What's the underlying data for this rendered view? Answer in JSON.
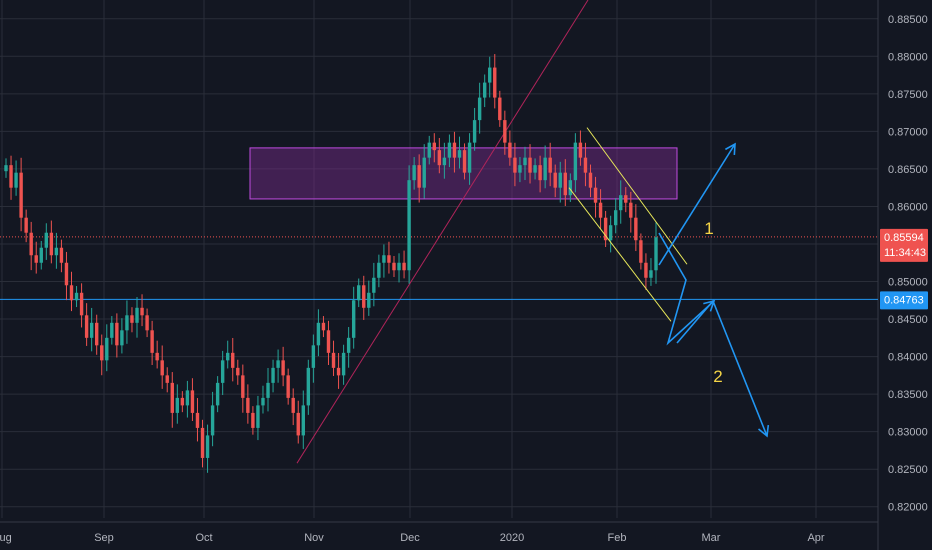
{
  "chart_data": {
    "type": "candlestick",
    "colors": {
      "background": "#131722",
      "grid": "#2a2e39",
      "axis_text": "#b2b5be",
      "up": "#26a69a",
      "down": "#ef5350",
      "zone_fill": "#7b2c8f",
      "zone_stroke": "#c04be0",
      "channel": "#e8e85a",
      "trendline": "#b0245a",
      "support": "#2196f3",
      "projection": "#2196f3",
      "current_price_line": "#ef5350",
      "annotation": "#f5d547"
    },
    "x_labels": [
      "Aug",
      "Sep",
      "Oct",
      "Nov",
      "Dec",
      "2020",
      "Feb",
      "Mar",
      "Apr"
    ],
    "y_ticks": [
      "0.88500",
      "0.88000",
      "0.87500",
      "0.87000",
      "0.86500",
      "0.86000",
      "0.85500",
      "0.85000",
      "0.84500",
      "0.84000",
      "0.83500",
      "0.83000",
      "0.82500",
      "0.82000"
    ],
    "ylim": [
      0.8185,
      0.8875
    ],
    "grid": true,
    "closes": [
      0.8655,
      0.8625,
      0.8645,
      0.8585,
      0.8565,
      0.8535,
      0.8525,
      0.8545,
      0.8565,
      0.8535,
      0.8545,
      0.8525,
      0.8495,
      0.8475,
      0.8485,
      0.8455,
      0.8425,
      0.8445,
      0.8415,
      0.8395,
      0.8425,
      0.8445,
      0.8415,
      0.8435,
      0.8455,
      0.8445,
      0.8465,
      0.8455,
      0.8435,
      0.8405,
      0.8395,
      0.8375,
      0.8365,
      0.8325,
      0.8345,
      0.8335,
      0.8355,
      0.8325,
      0.8305,
      0.8265,
      0.8295,
      0.8335,
      0.8365,
      0.8395,
      0.8405,
      0.8385,
      0.8375,
      0.8345,
      0.8325,
      0.8305,
      0.8335,
      0.8345,
      0.8365,
      0.8385,
      0.8395,
      0.8375,
      0.8345,
      0.8325,
      0.8295,
      0.8335,
      0.8385,
      0.8415,
      0.8445,
      0.8435,
      0.8405,
      0.8385,
      0.8375,
      0.8405,
      0.8425,
      0.8475,
      0.8495,
      0.8465,
      0.8485,
      0.8505,
      0.8525,
      0.8535,
      0.8525,
      0.8515,
      0.8525,
      0.8515,
      0.8635,
      0.8655,
      0.8625,
      0.8665,
      0.8685,
      0.8675,
      0.8655,
      0.8665,
      0.8685,
      0.8665,
      0.8675,
      0.8645,
      0.8685,
      0.8715,
      0.8745,
      0.8765,
      0.8785,
      0.8745,
      0.8715,
      0.8685,
      0.8665,
      0.8645,
      0.8655,
      0.8665,
      0.8645,
      0.8655,
      0.8635,
      0.8665,
      0.8645,
      0.8625,
      0.8645,
      0.8615,
      0.8635,
      0.8685,
      0.8665,
      0.8645,
      0.8625,
      0.8605,
      0.8585,
      0.8555,
      0.8575,
      0.8595,
      0.8615,
      0.8605,
      0.8585,
      0.8555,
      0.8525,
      0.8505,
      0.8515,
      0.8559
    ],
    "zone": {
      "from": 0.861,
      "to": 0.8678
    },
    "support_level": 0.84763,
    "current_price": 0.85594,
    "price_labels": {
      "current": "0.85594",
      "countdown": "11:34:43",
      "support": "0.84763"
    },
    "annotations": [
      "1",
      "2"
    ]
  }
}
